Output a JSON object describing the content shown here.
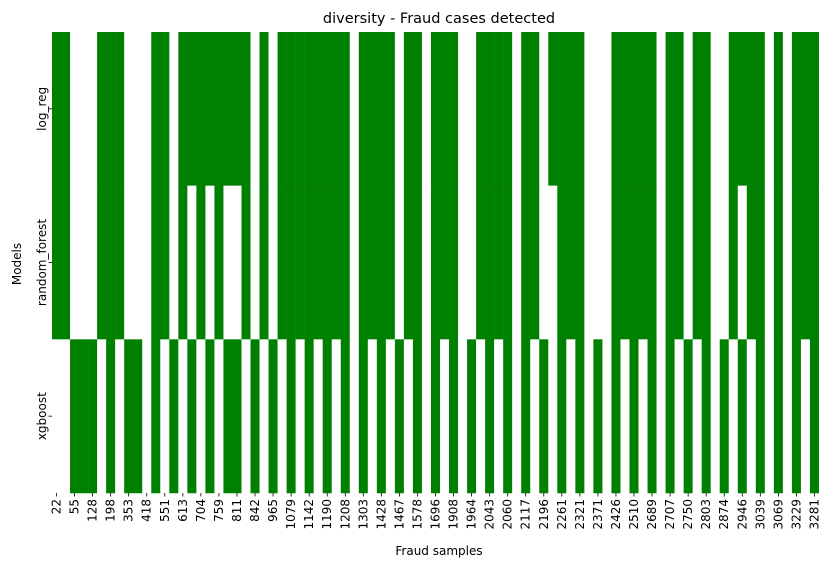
{
  "chart_data": {
    "type": "heatmap",
    "title": "diversity - Fraud cases detected",
    "xlabel": "Fraud samples",
    "ylabel": "Models",
    "rows": [
      "log_reg",
      "random_forest",
      "xgboost"
    ],
    "x_tick_labels": [
      "22",
      "55",
      "128",
      "198",
      "353",
      "418",
      "551",
      "613",
      "704",
      "759",
      "811",
      "842",
      "965",
      "1079",
      "1142",
      "1190",
      "1208",
      "1303",
      "1428",
      "1467",
      "1578",
      "1696",
      "1908",
      "1964",
      "2043",
      "2060",
      "2117",
      "2196",
      "2261",
      "2321",
      "2371",
      "2426",
      "2510",
      "2689",
      "2707",
      "2750",
      "2803",
      "2874",
      "2946",
      "3039",
      "3069",
      "3229",
      "3281"
    ],
    "n_columns": 86,
    "legend": "none",
    "colors": {
      "detected": "#008000",
      "not_detected": "#ffffff"
    },
    "values": [
      [
        1,
        1,
        0,
        0,
        0,
        1,
        1,
        1,
        0,
        0,
        0,
        1,
        1,
        0,
        1,
        1,
        1,
        1,
        1,
        1,
        1,
        1,
        0,
        1,
        0,
        1,
        1,
        1,
        1,
        1,
        1,
        1,
        1,
        0,
        1,
        1,
        1,
        1,
        0,
        1,
        1,
        0,
        1,
        1,
        1,
        0,
        0,
        1,
        1,
        1,
        1,
        0,
        1,
        1,
        0,
        1,
        1,
        1,
        1,
        0,
        0,
        0,
        1,
        1,
        1,
        1,
        1,
        0,
        1,
        1,
        0,
        1,
        1,
        0,
        0,
        1,
        1,
        1,
        1,
        0,
        1,
        0,
        1,
        1,
        1,
        0
      ],
      [
        1,
        1,
        0,
        0,
        0,
        1,
        1,
        1,
        0,
        0,
        0,
        1,
        1,
        0,
        1,
        0,
        1,
        0,
        1,
        0,
        0,
        1,
        0,
        1,
        0,
        1,
        1,
        1,
        1,
        1,
        1,
        1,
        1,
        0,
        1,
        1,
        1,
        1,
        0,
        1,
        1,
        0,
        1,
        1,
        1,
        0,
        0,
        1,
        1,
        1,
        1,
        0,
        1,
        1,
        0,
        0,
        1,
        1,
        1,
        0,
        0,
        0,
        1,
        1,
        1,
        1,
        1,
        0,
        1,
        1,
        0,
        1,
        1,
        0,
        0,
        1,
        0,
        1,
        1,
        0,
        1,
        0,
        1,
        1,
        1,
        0
      ],
      [
        0,
        0,
        1,
        1,
        1,
        0,
        1,
        0,
        1,
        1,
        0,
        1,
        0,
        1,
        0,
        1,
        0,
        1,
        0,
        1,
        1,
        0,
        1,
        0,
        1,
        0,
        1,
        0,
        1,
        0,
        1,
        0,
        1,
        0,
        1,
        0,
        1,
        0,
        1,
        0,
        1,
        0,
        1,
        0,
        1,
        0,
        1,
        0,
        1,
        0,
        1,
        0,
        1,
        0,
        1,
        0,
        1,
        0,
        1,
        0,
        1,
        0,
        1,
        0,
        1,
        0,
        1,
        0,
        1,
        0,
        1,
        0,
        1,
        0,
        1,
        0,
        1,
        0,
        1,
        0,
        1,
        0,
        1,
        0,
        1,
        0
      ]
    ]
  }
}
